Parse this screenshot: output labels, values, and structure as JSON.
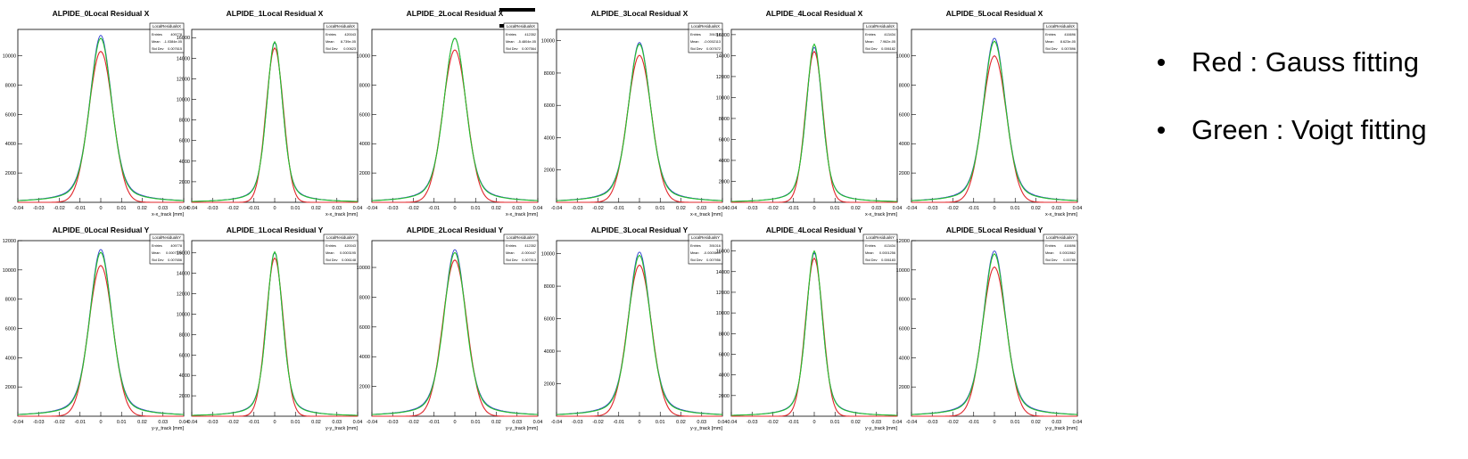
{
  "legend_notes": [
    {
      "text": "Red : Gauss fitting"
    },
    {
      "text": "Green : Voigt fitting"
    }
  ],
  "colors": {
    "data": "#2f3fd0",
    "gauss": "#e0262b",
    "voigt": "#23c02a"
  },
  "chart_data": [
    {
      "type": "histogram",
      "title": "ALPIDE_0Local Residual X",
      "xlabel": "x-x_track [mm]",
      "x_range": [
        -0.04,
        0.04
      ],
      "yticks": [
        2000,
        4000,
        6000,
        8000,
        10000
      ],
      "ylim": [
        0,
        11800
      ],
      "peak": 11400,
      "gauss_peak": 10300,
      "voigt_peak": 11200,
      "stats": {
        "name": "LocalResidualsX",
        "entries": "409778",
        "mean": "-1.0384e-05",
        "std_dev": "0.007615"
      }
    },
    {
      "type": "histogram",
      "title": "ALPIDE_1Local Residual X",
      "xlabel": "x-x_track [mm]",
      "x_range": [
        -0.04,
        0.04
      ],
      "yticks": [
        2000,
        4000,
        6000,
        8000,
        10000,
        12000,
        14000,
        16000
      ],
      "ylim": [
        0,
        16800
      ],
      "peak": 15500,
      "gauss_peak": 15000,
      "voigt_peak": 15600,
      "stats": {
        "name": "LocalResidualsX",
        "entries": "420043",
        "mean": "8.739e-05",
        "std_dev": "0.00623"
      }
    },
    {
      "type": "histogram",
      "title": "ALPIDE_2Local Residual X",
      "xlabel": "x-x_track [mm]",
      "x_range": [
        -0.04,
        0.04
      ],
      "yticks": [
        2000,
        4000,
        6000,
        8000,
        10000
      ],
      "ylim": [
        0,
        11800
      ],
      "peak": 11200,
      "gauss_peak": 10400,
      "voigt_peak": 11200,
      "stats": {
        "name": "LocalResidualsX",
        "entries": "412352",
        "mean": "-5.4804e-05",
        "std_dev": "0.007564"
      }
    },
    {
      "type": "histogram",
      "title": "ALPIDE_3Local Residual X",
      "xlabel": "x-x_track [mm]",
      "x_range": [
        -0.04,
        0.04
      ],
      "yticks": [
        2000,
        4000,
        6000,
        8000,
        10000
      ],
      "ylim": [
        0,
        10700
      ],
      "peak": 9900,
      "gauss_peak": 9100,
      "voigt_peak": 9800,
      "stats": {
        "name": "LocalResidualsX",
        "entries": "391016",
        "mean": "-0.0002113",
        "std_dev": "0.007672"
      }
    },
    {
      "type": "histogram",
      "title": "ALPIDE_4Local Residual X",
      "xlabel": "x-x_track [mm]",
      "x_range": [
        -0.04,
        0.04
      ],
      "yticks": [
        2000,
        4000,
        6000,
        8000,
        10000,
        12000,
        14000,
        16000
      ],
      "ylim": [
        0,
        16500
      ],
      "peak": 14800,
      "gauss_peak": 14400,
      "voigt_peak": 15100,
      "stats": {
        "name": "LocalResidualsX",
        "entries": "413434",
        "mean": "7.962e-05",
        "std_dev": "0.006182"
      }
    },
    {
      "type": "histogram",
      "title": "ALPIDE_5Local Residual X",
      "xlabel": "x-x_track [mm]",
      "x_range": [
        -0.04,
        0.04
      ],
      "yticks": [
        2000,
        4000,
        6000,
        8000,
        10000
      ],
      "ylim": [
        0,
        11800
      ],
      "peak": 11200,
      "gauss_peak": 10000,
      "voigt_peak": 11000,
      "stats": {
        "name": "LocalResidualsX",
        "entries": "416696",
        "mean": "8.623e-05",
        "std_dev": "0.007896"
      }
    },
    {
      "type": "histogram",
      "title": "ALPIDE_0Local  Residual Y",
      "xlabel": "y-y_track [mm]",
      "x_range": [
        -0.04,
        0.04
      ],
      "yticks": [
        2000,
        4000,
        6000,
        8000,
        10000,
        12000
      ],
      "ylim": [
        0,
        12000
      ],
      "peak": 11400,
      "gauss_peak": 10300,
      "voigt_peak": 11200,
      "stats": {
        "name": "LocalResidualsY",
        "entries": "409778",
        "mean": "0.0007376",
        "std_dev": "0.007656"
      }
    },
    {
      "type": "histogram",
      "title": "ALPIDE_1Local  Residual Y",
      "xlabel": "y-y_track [mm]",
      "x_range": [
        -0.04,
        0.04
      ],
      "yticks": [
        2000,
        4000,
        6000,
        8000,
        10000,
        12000,
        14000,
        16000
      ],
      "ylim": [
        0,
        17200
      ],
      "peak": 16000,
      "gauss_peak": 15500,
      "voigt_peak": 16100,
      "stats": {
        "name": "LocalResidualsY",
        "entries": "420043",
        "mean": "0.0003195",
        "std_dev": "0.006148"
      }
    },
    {
      "type": "histogram",
      "title": "ALPIDE_2Local  Residual Y",
      "xlabel": "y-y_track [mm]",
      "x_range": [
        -0.04,
        0.04
      ],
      "yticks": [
        2000,
        4000,
        6000,
        8000,
        10000
      ],
      "ylim": [
        0,
        11800
      ],
      "peak": 11200,
      "gauss_peak": 10500,
      "voigt_peak": 11000,
      "stats": {
        "name": "LocalResidualsY",
        "entries": "412352",
        "mean": "-0.000447",
        "std_dev": "0.007513"
      }
    },
    {
      "type": "histogram",
      "title": "ALPIDE_3Local  Residual Y",
      "xlabel": "y-y_track [mm]",
      "x_range": [
        -0.04,
        0.04
      ],
      "yticks": [
        2000,
        4000,
        6000,
        8000,
        10000
      ],
      "ylim": [
        0,
        10800
      ],
      "peak": 10100,
      "gauss_peak": 9300,
      "voigt_peak": 9900,
      "stats": {
        "name": "LocalResidualsY",
        "entries": "391016",
        "mean": "-0.0003609",
        "std_dev": "0.007956"
      }
    },
    {
      "type": "histogram",
      "title": "ALPIDE_4Local  Residual Y",
      "xlabel": "y-y_track [mm]",
      "x_range": [
        -0.04,
        0.04
      ],
      "yticks": [
        2000,
        4000,
        6000,
        8000,
        10000,
        12000,
        14000,
        16000
      ],
      "ylim": [
        0,
        17000
      ],
      "peak": 15800,
      "gauss_peak": 15300,
      "voigt_peak": 16000,
      "stats": {
        "name": "LocalResidualsY",
        "entries": "413434",
        "mean": "0.0001256",
        "std_dev": "0.006183"
      }
    },
    {
      "type": "histogram",
      "title": "ALPIDE_5Local  Residual Y",
      "xlabel": "y-y_track [mm]",
      "x_range": [
        -0.04,
        0.04
      ],
      "yticks": [
        2000,
        4000,
        6000,
        8000,
        10000,
        12000
      ],
      "ylim": [
        0,
        12000
      ],
      "peak": 11300,
      "gauss_peak": 10200,
      "voigt_peak": 11100,
      "stats": {
        "name": "LocalResidualsY",
        "entries": "416696",
        "mean": "0.0002862",
        "std_dev": "0.00785"
      }
    }
  ],
  "xticks": [
    "-0.04",
    "-0.03",
    "-0.02",
    "-0.01",
    "0",
    "0.01",
    "0.02",
    "0.03",
    "0.04"
  ],
  "stats_labels": {
    "entries": "Entries",
    "mean": "Mean",
    "std_dev": "Std Dev"
  }
}
